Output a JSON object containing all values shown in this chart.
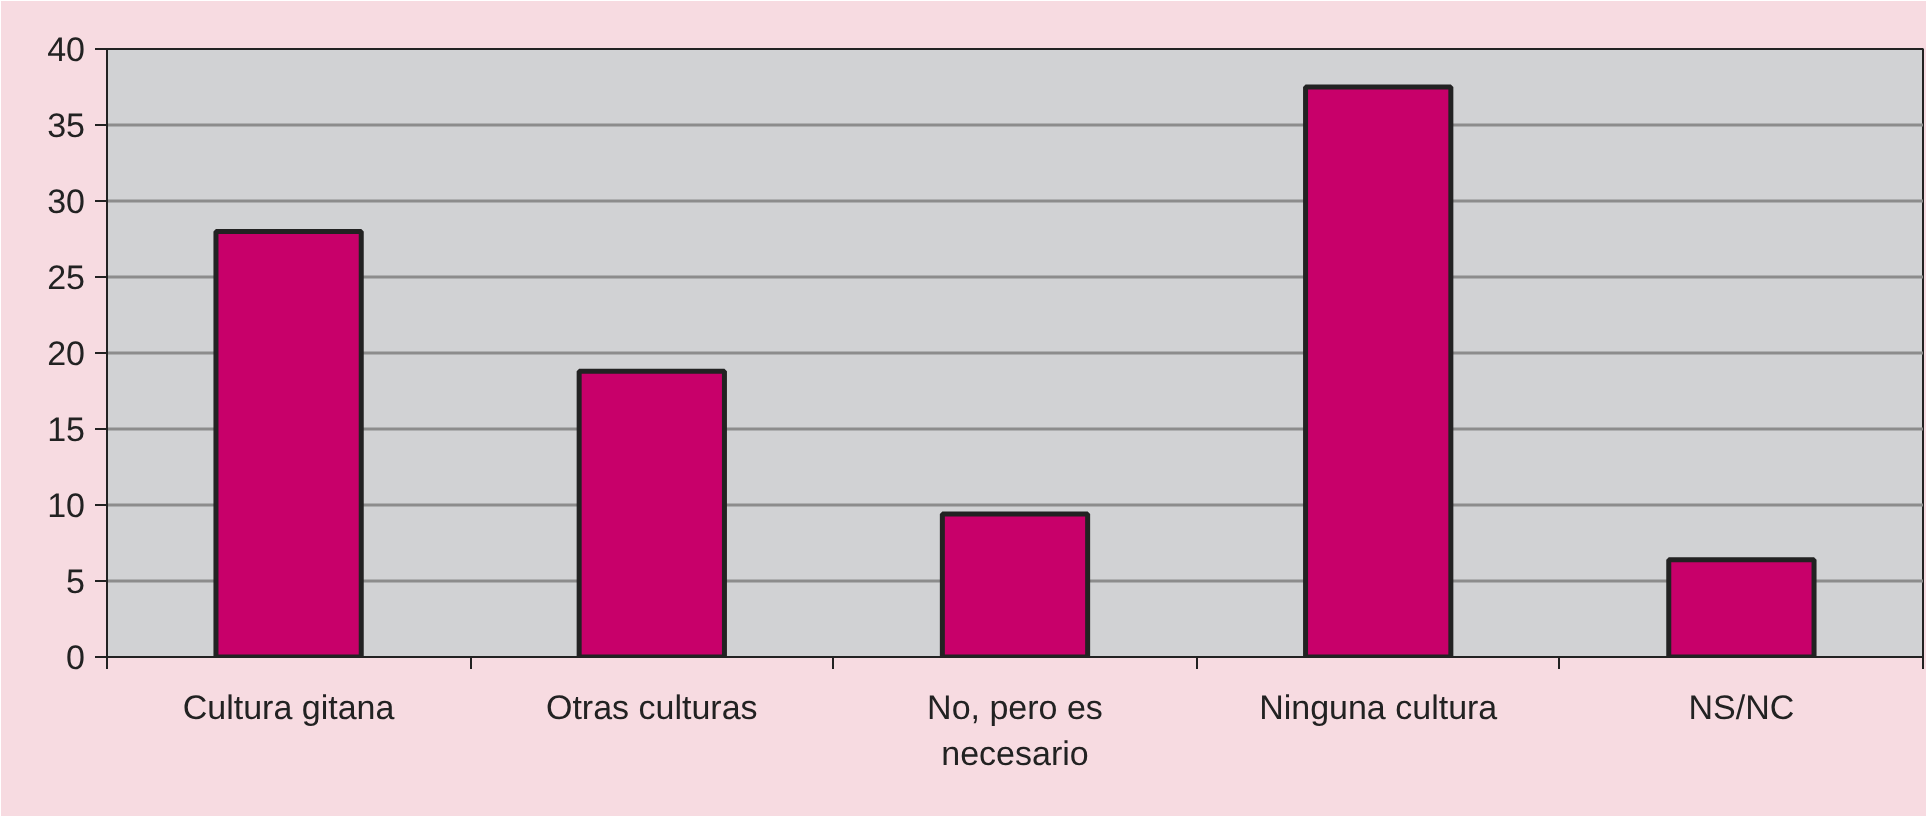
{
  "chart_data": {
    "type": "bar",
    "categories": [
      "Cultura gitana",
      "Otras culturas",
      "No, pero es\nnecesario",
      "Ninguna cultura",
      "NS/NC"
    ],
    "values": [
      28,
      18.8,
      9.4,
      37.5,
      6.4
    ],
    "color": "#c8006a",
    "ylim": [
      0,
      40
    ],
    "yticks": [
      0,
      5,
      10,
      15,
      20,
      25,
      30,
      35,
      40
    ],
    "grid": "y"
  }
}
